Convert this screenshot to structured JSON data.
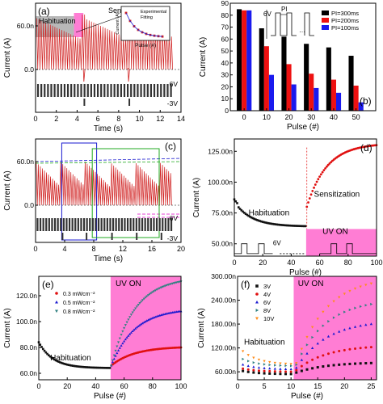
{
  "chart_data": [
    {
      "type": "line",
      "panel": "(a)",
      "ylabel": "Current (A)",
      "xlabel": "Time (s)",
      "xlim": [
        0,
        14
      ],
      "yticks": [
        "60.0n",
        "0.0"
      ],
      "xticks": [
        0,
        2,
        4,
        6,
        8,
        10,
        12,
        14
      ],
      "region_labels": {
        "habituation": "Habituation",
        "sensitization": "Sensitization"
      },
      "voltage_labels": [
        "6V",
        "-3V"
      ],
      "inset": {
        "ylabel": "Current (A)",
        "xlabel": "Pulse (#)",
        "legend": [
          "Experimental",
          "Fitting"
        ]
      }
    },
    {
      "type": "bar",
      "panel": "(b)",
      "ylabel": "Current (A)",
      "xlabel": "Pulse (#)",
      "ylim": [
        0,
        90
      ],
      "yticks": [
        0,
        10,
        20,
        30,
        40,
        50,
        60,
        70,
        80,
        90
      ],
      "categories": [
        "0",
        "10",
        "20",
        "30",
        "40",
        "50"
      ],
      "series": [
        {
          "name": "PI=300ms",
          "color": "#000000",
          "values": [
            85,
            69,
            62,
            56,
            53,
            46
          ]
        },
        {
          "name": "PI=200ms",
          "color": "#ee1111",
          "values": [
            84,
            54,
            39,
            31,
            26,
            21
          ]
        },
        {
          "name": "PI=100ms",
          "color": "#1a1aee",
          "values": [
            84,
            30,
            22,
            19,
            15,
            7
          ]
        }
      ],
      "inset": {
        "voltage": "6V",
        "label": "PI"
      }
    },
    {
      "type": "line",
      "panel": "(c)",
      "ylabel": "Current (A)",
      "xlabel": "Time (s)",
      "xlim": [
        0,
        20
      ],
      "yticks": [
        "60.0n",
        "0.0"
      ],
      "xticks": [
        0,
        4,
        8,
        12,
        16,
        20
      ],
      "voltage_labels": [
        "6V",
        "-3V"
      ]
    },
    {
      "type": "scatter",
      "panel": "(d)",
      "ylabel": "Current (A)",
      "xlabel": "Pulse (#)",
      "xlim": [
        0,
        100
      ],
      "ylim": [
        40,
        135
      ],
      "yticks": [
        "50.00n",
        "75.00n",
        "100.00n",
        "125.00n"
      ],
      "xticks": [
        0,
        20,
        40,
        60,
        80,
        100
      ],
      "habituation": {
        "label": "Habituation",
        "x_range": [
          0,
          50
        ],
        "y_range": [
          84,
          64
        ]
      },
      "sensitization": {
        "label": "Sensitization",
        "x_range": [
          51,
          100
        ],
        "y_range": [
          80,
          130
        ]
      },
      "uv_label": "UV ON",
      "voltage_label": "6V"
    },
    {
      "type": "scatter",
      "panel": "(e)",
      "ylabel": "Current (A)",
      "xlabel": "Pulse (#)",
      "xlim": [
        0,
        100
      ],
      "ylim": [
        55,
        135
      ],
      "yticks": [
        "60.0n",
        "80.0n",
        "100.0n",
        "120.0n"
      ],
      "xticks": [
        0,
        20,
        40,
        60,
        80,
        100
      ],
      "habituation_label": "Habituation",
      "uv_label": "UV ON",
      "series": [
        {
          "name": "0.3 mWcm⁻²",
          "color": "#e01010",
          "end": 80
        },
        {
          "name": "0.5 mWcm⁻²",
          "color": "#1a1ad0",
          "end": 108
        },
        {
          "name": "0.8 mWcm⁻²",
          "color": "#2e8080",
          "end": 131
        }
      ]
    },
    {
      "type": "scatter",
      "panel": "(f)",
      "ylabel": "Current (A)",
      "xlabel": "Pulse (#)",
      "xlim": [
        0,
        26
      ],
      "ylim": [
        40,
        300
      ],
      "yticks": [
        "60.00n",
        "120.00n",
        "180.00n",
        "240.00n",
        "300.00n"
      ],
      "xticks": [
        0,
        5,
        10,
        15,
        20,
        25
      ],
      "habituation_label": "Habituation",
      "uv_label": "UV ON",
      "series": [
        {
          "name": "3V",
          "color": "#111111",
          "start": 62,
          "low": 54,
          "end": 82
        },
        {
          "name": "4V",
          "color": "#e01010",
          "start": 68,
          "low": 60,
          "end": 122
        },
        {
          "name": "6V",
          "color": "#1a1ad0",
          "start": 78,
          "low": 66,
          "end": 180
        },
        {
          "name": "8V",
          "color": "#2e8080",
          "start": 92,
          "low": 74,
          "end": 230
        },
        {
          "name": "10V",
          "color": "#ff8c1a",
          "start": 112,
          "low": 78,
          "end": 282
        }
      ]
    }
  ]
}
